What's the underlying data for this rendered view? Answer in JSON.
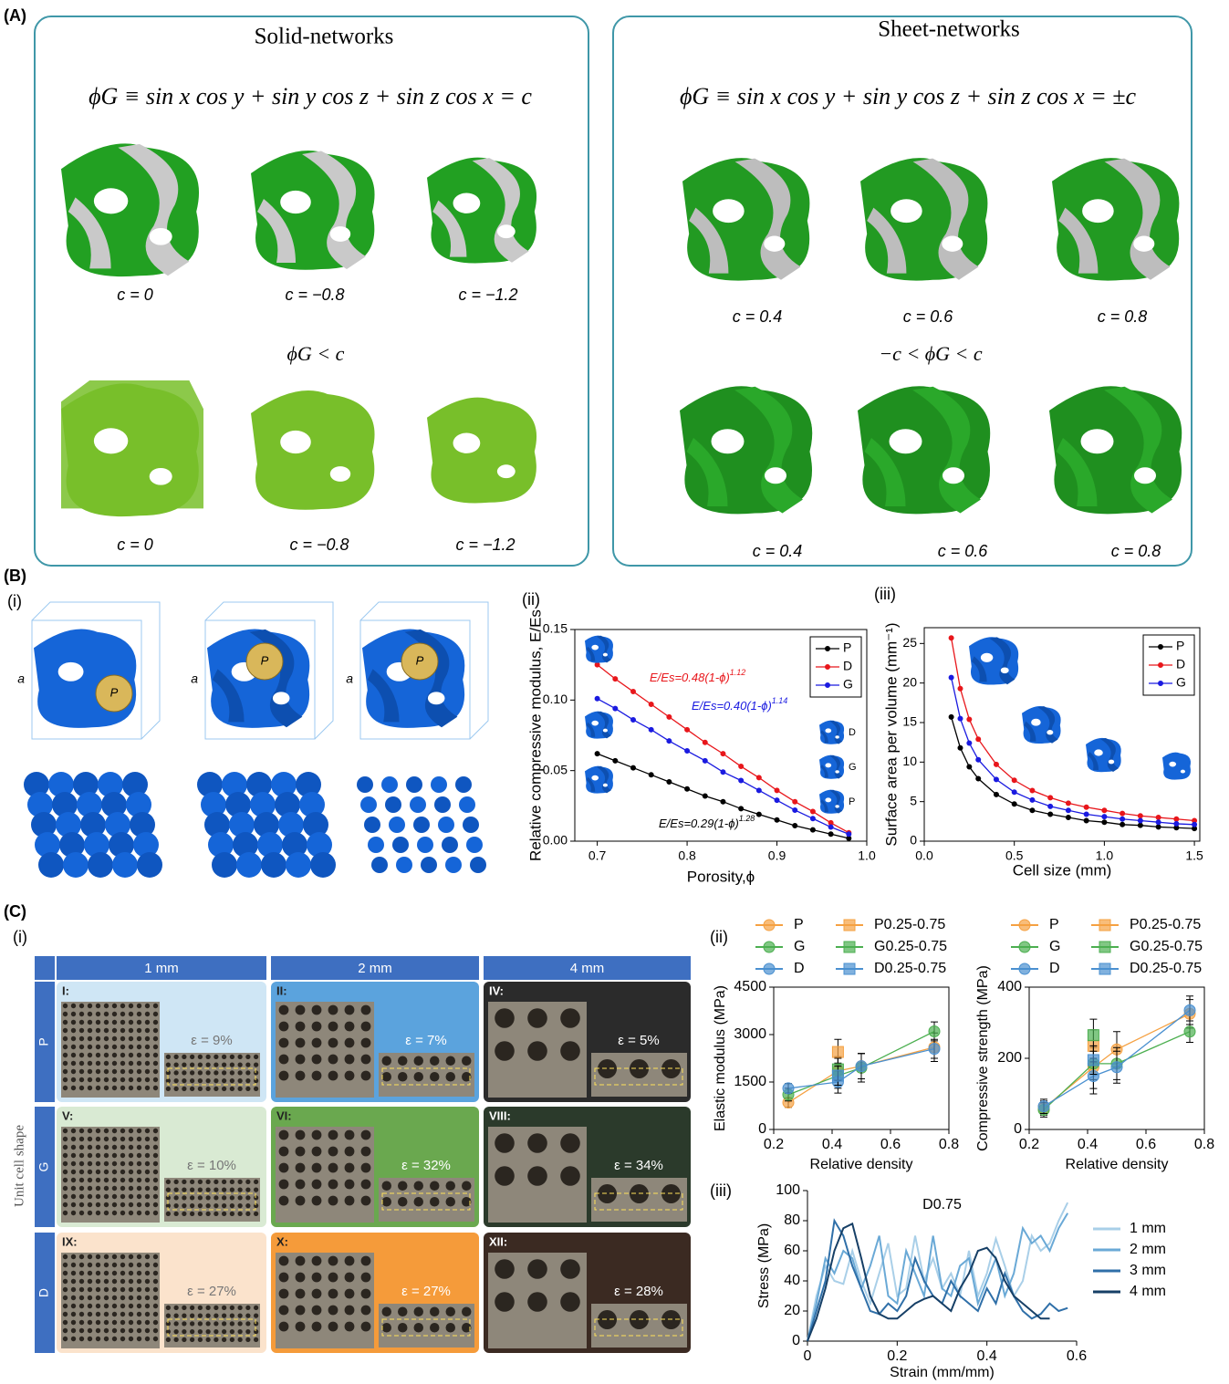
{
  "panel_labels": [
    "(A)",
    "(B)",
    "(C)"
  ],
  "sub_labels": {
    "b_i": "(i)",
    "b_ii": "(ii)",
    "b_iii": "(iii)",
    "c_i": "(i)",
    "c_ii": "(ii)",
    "c_iii": "(iii)"
  },
  "section_a": {
    "solid": {
      "title": "Solid-networks",
      "equation": "ϕG ≡ sin x cos y + sin y cos z + sin z cos x = c",
      "condition": "ϕG < c",
      "top_captions": [
        "c = 0",
        "c = −0.8",
        "c = −1.2"
      ],
      "bottom_captions": [
        "c = 0",
        "c = −0.8",
        "c = −1.2"
      ]
    },
    "sheet": {
      "title": "Sheet-networks",
      "equation": "ϕG ≡ sin x cos y + sin y cos z + sin z cos x = ±c",
      "condition": "−c < ϕG < c",
      "top_captions": [
        "c = 0.4",
        "c = 0.6",
        "c = 0.8"
      ],
      "bottom_captions": [
        "c = 0.4",
        "c = 0.6",
        "c = 0.8"
      ]
    }
  },
  "section_b_i": {
    "edge_labels": [
      "a",
      "a",
      "a"
    ],
    "pore_labels": [
      "P",
      "P",
      "P"
    ]
  },
  "section_c_i": {
    "columns": [
      "1 mm",
      "2 mm",
      "4 mm"
    ],
    "rows": [
      "P",
      "G",
      "D"
    ],
    "row_axis": "Unit cell shape",
    "cells": [
      [
        {
          "label": "I:",
          "strain": "ε = 9%"
        },
        {
          "label": "II:",
          "strain": "ε = 7%"
        },
        {
          "label": "IV:",
          "strain": "ε = 5%"
        }
      ],
      [
        {
          "label": "V:",
          "strain": "ε = 10%"
        },
        {
          "label": "VI:",
          "strain": "ε = 32%"
        },
        {
          "label": "VIII:",
          "strain": "ε = 34%"
        }
      ],
      [
        {
          "label": "IX:",
          "strain": "ε = 27%"
        },
        {
          "label": "X:",
          "strain": "ε = 27%"
        },
        {
          "label": "XII:",
          "strain": "ε = 28%"
        }
      ]
    ]
  },
  "chart_data": [
    {
      "type": "line",
      "xlabel": "Porosity,ϕ",
      "ylabel": "Relative compressive modulus, E/Es",
      "xlim": [
        0.675,
        1.0
      ],
      "xticks": [
        0.7,
        0.8,
        0.9,
        {
          "value": 1,
          "label": "1.0"
        }
      ],
      "ylim": [
        0,
        0.15
      ],
      "yticks": [
        {
          "value": 0,
          "label": "0.00"
        },
        0.05,
        {
          "value": 0.1,
          "label": "0.10"
        },
        0.15
      ],
      "x": [
        0.7,
        0.72,
        0.74,
        0.76,
        0.78,
        0.8,
        0.82,
        0.84,
        0.86,
        0.88,
        0.9,
        0.92,
        0.94,
        0.96,
        0.98
      ],
      "series": [
        {
          "name": "P",
          "color": "#000000",
          "marker": "circle",
          "values": [
            0.062,
            0.057,
            0.052,
            0.047,
            0.042,
            0.037,
            0.032,
            0.028,
            0.023,
            0.019,
            0.015,
            0.011,
            0.008,
            0.005,
            0.002
          ]
        },
        {
          "name": "D",
          "color": "#e8161b",
          "marker": "circle",
          "values": [
            0.125,
            0.115,
            0.106,
            0.097,
            0.088,
            0.079,
            0.07,
            0.062,
            0.053,
            0.045,
            0.036,
            0.028,
            0.021,
            0.013,
            0.006
          ]
        },
        {
          "name": "G",
          "color": "#1a1ae0",
          "marker": "circle",
          "values": [
            0.101,
            0.094,
            0.086,
            0.079,
            0.071,
            0.064,
            0.057,
            0.049,
            0.043,
            0.036,
            0.029,
            0.022,
            0.016,
            0.01,
            0.005
          ]
        }
      ],
      "legend": "upper right",
      "annotations": [
        {
          "text": "E/Es=0.48(1-ϕ)",
          "exponent": "1.12"
        },
        {
          "text": "E/Es=0.40(1-ϕ)",
          "exponent": "1.14"
        },
        {
          "text": "E/Es=0.29(1-ϕ)",
          "exponent": "1.28"
        }
      ],
      "inset_labels": [
        "D",
        "G",
        "P"
      ]
    },
    {
      "type": "line",
      "xlabel": "Cell size (mm)",
      "ylabel": "Surface area per volume (mm⁻¹)",
      "xlim": [
        0,
        1.53
      ],
      "xticks": [
        {
          "value": 0,
          "label": "0.0"
        },
        0.5,
        {
          "value": 1,
          "label": "1.0"
        },
        1.5
      ],
      "ylim": [
        0,
        27
      ],
      "yticks": [
        0,
        5,
        10,
        15,
        20,
        25
      ],
      "x": [
        0.15,
        0.2,
        0.25,
        0.3,
        0.4,
        0.5,
        0.6,
        0.7,
        0.8,
        0.9,
        1.0,
        1.1,
        1.2,
        1.3,
        1.4,
        1.5
      ],
      "series": [
        {
          "name": "P",
          "color": "#000000",
          "marker": "circle",
          "values": [
            15.7,
            11.8,
            9.4,
            7.9,
            5.9,
            4.7,
            3.9,
            3.4,
            3.0,
            2.6,
            2.4,
            2.1,
            2.0,
            1.8,
            1.7,
            1.6
          ]
        },
        {
          "name": "D",
          "color": "#e8161b",
          "marker": "circle",
          "values": [
            25.7,
            19.3,
            15.4,
            12.9,
            9.7,
            7.7,
            6.4,
            5.5,
            4.8,
            4.3,
            3.9,
            3.5,
            3.2,
            3.0,
            2.8,
            2.6
          ]
        },
        {
          "name": "G",
          "color": "#1a1ae0",
          "marker": "circle",
          "values": [
            20.7,
            15.5,
            12.4,
            10.3,
            7.8,
            6.2,
            5.2,
            4.4,
            3.9,
            3.4,
            3.1,
            2.8,
            2.6,
            2.4,
            2.2,
            2.1
          ]
        }
      ],
      "legend": "upper right"
    },
    {
      "type": "line",
      "xlabel": "Relative density",
      "ylabel": "Elastic modulus (MPa)",
      "xlim": [
        0.2,
        0.8
      ],
      "xticks": [
        0.2,
        0.4,
        0.6,
        0.8
      ],
      "ylim": [
        0,
        4500
      ],
      "yticks": [
        0,
        1500,
        3000,
        4500
      ],
      "x": [
        0.25,
        0.42,
        0.5,
        0.75
      ],
      "series": [
        {
          "name": "P",
          "color": "#f5a142",
          "marker": "circle",
          "values": [
            850,
            1850,
            2000,
            2600
          ],
          "errors": [
            150,
            450,
            400,
            450
          ]
        },
        {
          "name": "G",
          "color": "#4caf50",
          "marker": "circle",
          "values": [
            1100,
            1700,
            1950,
            3100
          ],
          "errors": [
            200,
            400,
            450,
            300
          ]
        },
        {
          "name": "D",
          "color": "#4a90d0",
          "marker": "circle",
          "values": [
            1300,
            1500,
            2000,
            2550
          ],
          "errors": [
            150,
            350,
            400,
            300
          ]
        },
        {
          "name": "P0.25-0.75",
          "color": "#f5a142",
          "marker": "square",
          "values": [
            null,
            2450,
            null,
            null
          ],
          "errors": [
            null,
            400,
            null,
            null
          ]
        },
        {
          "name": "G0.25-0.75",
          "color": "#4caf50",
          "marker": "square",
          "values": [
            null,
            1900,
            null,
            null
          ],
          "errors": [
            null,
            350,
            null,
            null
          ]
        },
        {
          "name": "D0.25-0.75",
          "color": "#4a90d0",
          "marker": "square",
          "values": [
            null,
            1700,
            null,
            null
          ],
          "errors": [
            null,
            300,
            null,
            null
          ]
        }
      ],
      "legend": "top"
    },
    {
      "type": "line",
      "xlabel": "Relative density",
      "ylabel": "Compressive strength (MPa)",
      "xlim": [
        0.2,
        0.8
      ],
      "xticks": [
        0.2,
        0.4,
        0.6,
        0.8
      ],
      "ylim": [
        0,
        400
      ],
      "yticks": [
        0,
        200,
        400
      ],
      "x": [
        0.25,
        0.42,
        0.5,
        0.75
      ],
      "series": [
        {
          "name": "P",
          "color": "#f5a142",
          "marker": "circle",
          "values": [
            60,
            175,
            225,
            325
          ],
          "errors": [
            20,
            60,
            50,
            40
          ]
        },
        {
          "name": "G",
          "color": "#4caf50",
          "marker": "circle",
          "values": [
            55,
            185,
            185,
            275
          ],
          "errors": [
            20,
            45,
            45,
            30
          ]
        },
        {
          "name": "D",
          "color": "#4a90d0",
          "marker": "circle",
          "values": [
            65,
            150,
            175,
            335
          ],
          "errors": [
            20,
            50,
            45,
            40
          ]
        },
        {
          "name": "P0.25-0.75",
          "color": "#f5a142",
          "marker": "square",
          "values": [
            null,
            235,
            null,
            null
          ],
          "errors": [
            null,
            45,
            null,
            null
          ]
        },
        {
          "name": "G0.25-0.75",
          "color": "#4caf50",
          "marker": "square",
          "values": [
            null,
            265,
            null,
            null
          ],
          "errors": [
            null,
            45,
            null,
            null
          ]
        },
        {
          "name": "D0.25-0.75",
          "color": "#4a90d0",
          "marker": "square",
          "values": [
            null,
            195,
            null,
            null
          ],
          "errors": [
            null,
            40,
            null,
            null
          ]
        }
      ],
      "legend": "top"
    },
    {
      "type": "line",
      "title": "D0.75",
      "xlabel": "Strain (mm/mm)",
      "ylabel": "Stress (MPa)",
      "xlim": [
        0,
        0.6
      ],
      "xticks": [
        0,
        0.2,
        0.4,
        0.6
      ],
      "ylim": [
        0,
        100
      ],
      "yticks": [
        0,
        20,
        40,
        60,
        80,
        100
      ],
      "x": [
        0,
        0.02,
        0.04,
        0.06,
        0.08,
        0.1,
        0.12,
        0.14,
        0.16,
        0.18,
        0.2,
        0.22,
        0.24,
        0.26,
        0.28,
        0.3,
        0.32,
        0.34,
        0.36,
        0.38,
        0.4,
        0.42,
        0.44,
        0.46,
        0.48,
        0.5,
        0.52,
        0.54,
        0.56,
        0.58
      ],
      "series": [
        {
          "name": "1 mm",
          "color": "#a9cfe8",
          "values": [
            0,
            30,
            50,
            40,
            38,
            60,
            40,
            25,
            45,
            65,
            30,
            35,
            70,
            40,
            55,
            35,
            45,
            30,
            60,
            30,
            45,
            68,
            50,
            30,
            40,
            70,
            60,
            65,
            80,
            92
          ]
        },
        {
          "name": "2 mm",
          "color": "#6aa9d6",
          "values": [
            0,
            25,
            55,
            45,
            60,
            55,
            35,
            50,
            70,
            30,
            25,
            60,
            45,
            30,
            70,
            35,
            30,
            50,
            55,
            25,
            40,
            55,
            30,
            45,
            75,
            65,
            70,
            60,
            75,
            85
          ]
        },
        {
          "name": "3 mm",
          "color": "#2f6fa8",
          "values": [
            0,
            20,
            40,
            80,
            70,
            50,
            35,
            20,
            18,
            25,
            20,
            30,
            55,
            40,
            30,
            25,
            40,
            30,
            25,
            20,
            35,
            25,
            45,
            30,
            20,
            15,
            18,
            25,
            20,
            22
          ]
        },
        {
          "name": "4 mm",
          "color": "#163f66",
          "values": [
            0,
            15,
            35,
            60,
            75,
            78,
            55,
            30,
            18,
            15,
            15,
            20,
            25,
            28,
            30,
            25,
            20,
            35,
            45,
            60,
            62,
            55,
            40,
            30,
            25,
            20,
            15,
            15,
            null,
            null
          ]
        }
      ],
      "legend": "right"
    }
  ]
}
